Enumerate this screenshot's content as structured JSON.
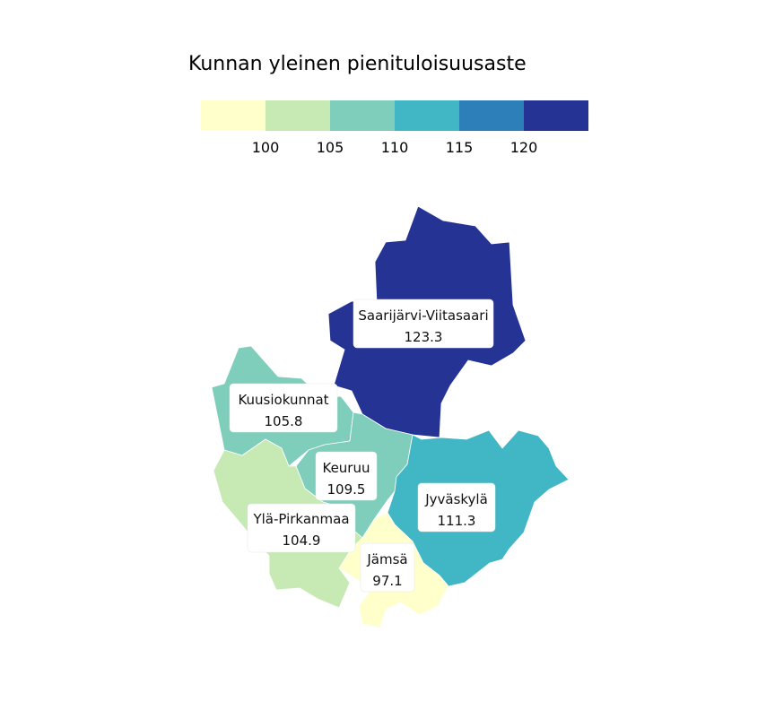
{
  "legend": {
    "title": "Kunnan yleinen pienituloisuusaste",
    "colors": [
      "#ffffcc",
      "#c7e9b4",
      "#7fcdbb",
      "#41b6c4",
      "#2c7fb8",
      "#253494"
    ],
    "ticks": [
      "100",
      "105",
      "110",
      "115",
      "120"
    ]
  },
  "regions": [
    {
      "id": "saarijarvi-viitasaari",
      "name": "Saarijärvi-Viitasaari",
      "value": "123.3",
      "color": "#253494"
    },
    {
      "id": "kuusiokunnat",
      "name": "Kuusiokunnat",
      "value": "105.8",
      "color": "#7fcdbb"
    },
    {
      "id": "keuruu",
      "name": "Keuruu",
      "value": "109.5",
      "color": "#7fcdbb"
    },
    {
      "id": "jyvaskyla",
      "name": "Jyväskylä",
      "value": "111.3",
      "color": "#41b6c4"
    },
    {
      "id": "yla-pirkanmaa",
      "name": "Ylä-Pirkanmaa",
      "value": "104.9",
      "color": "#c7e9b4"
    },
    {
      "id": "jamsa",
      "name": "Jämsä",
      "value": "97.1",
      "color": "#ffffcc"
    }
  ]
}
